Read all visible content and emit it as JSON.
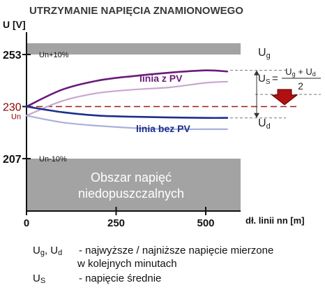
{
  "title": "UTRZYMANIE NAPIĘCIA ZNAMIONOWEGO",
  "colors": {
    "pv_line": "#6a1b7a",
    "pv_line_light": "#c9a6cf",
    "nopv_line": "#1a2f8c",
    "nopv_line_light": "#aab0dc",
    "forbidden_zone": "#a3a3a3",
    "nominal_line": "#9b1c1c",
    "arrow": "#b01010"
  },
  "chart_data": {
    "type": "line",
    "title": "UTRZYMANIE NAPIĘCIA ZNAMIONOWEGO",
    "ylabel": "U [V]",
    "xlabel": "dł. linii nn [m]",
    "ylim": [
      200,
      260
    ],
    "xlim": [
      0,
      600
    ],
    "x_ticks": [
      0,
      250,
      500
    ],
    "x_tick_labels": [
      "0",
      "250",
      "500"
    ],
    "y_ticks": [
      {
        "value": 253,
        "label": "253",
        "sublabel": "Un+10%"
      },
      {
        "value": 230,
        "label": "230",
        "sublabel": "Un"
      },
      {
        "value": 207,
        "label": "207",
        "sublabel": "Un-10%"
      }
    ],
    "forbidden_upper": [
      253,
      258
    ],
    "forbidden_lower": [
      200,
      207
    ],
    "forbidden_label_line1": "Obszar napięć",
    "forbidden_label_line2": "niedopuszczalnych",
    "nominal_voltage": 230,
    "series": [
      {
        "name": "linia z PV",
        "style": "solid",
        "color": "pv_line",
        "x": [
          0,
          100,
          200,
          300,
          400,
          500,
          560
        ],
        "y": [
          230,
          237.5,
          241.5,
          243.5,
          245,
          246,
          245.5
        ]
      },
      {
        "name": "",
        "style": "light",
        "color": "pv_line_light",
        "x": [
          0,
          100,
          200,
          300,
          400,
          500,
          560
        ],
        "y": [
          226,
          232.5,
          236,
          237.5,
          238.5,
          240.5,
          241
        ]
      },
      {
        "name": "linia bez PV",
        "style": "solid",
        "color": "nopv_line",
        "x": [
          0,
          100,
          200,
          300,
          400,
          500,
          560
        ],
        "y": [
          230,
          227.5,
          226,
          225.5,
          225.2,
          225,
          225
        ]
      },
      {
        "name": "",
        "style": "light",
        "color": "nopv_line_light",
        "x": [
          0,
          100,
          200,
          300,
          400,
          500,
          560
        ],
        "y": [
          226,
          223,
          221.5,
          220.5,
          220,
          220,
          220
        ]
      }
    ],
    "annotation": {
      "ug_label": "Ug",
      "ud_label": "Ud",
      "us_label": "Us",
      "formula_numerator": "Ug + Ud",
      "formula_denominator": "2",
      "ug_value": 246,
      "ud_value": 225,
      "us_value": 236
    }
  },
  "legend": {
    "row1_symbol": "Ug, Ud",
    "row1_text": "- najwyższe / najniższe napięcie mierzone",
    "row2_text": "w kolejnych minutach",
    "row3_symbol": "Us",
    "row3_text": "- napięcie średnie"
  }
}
